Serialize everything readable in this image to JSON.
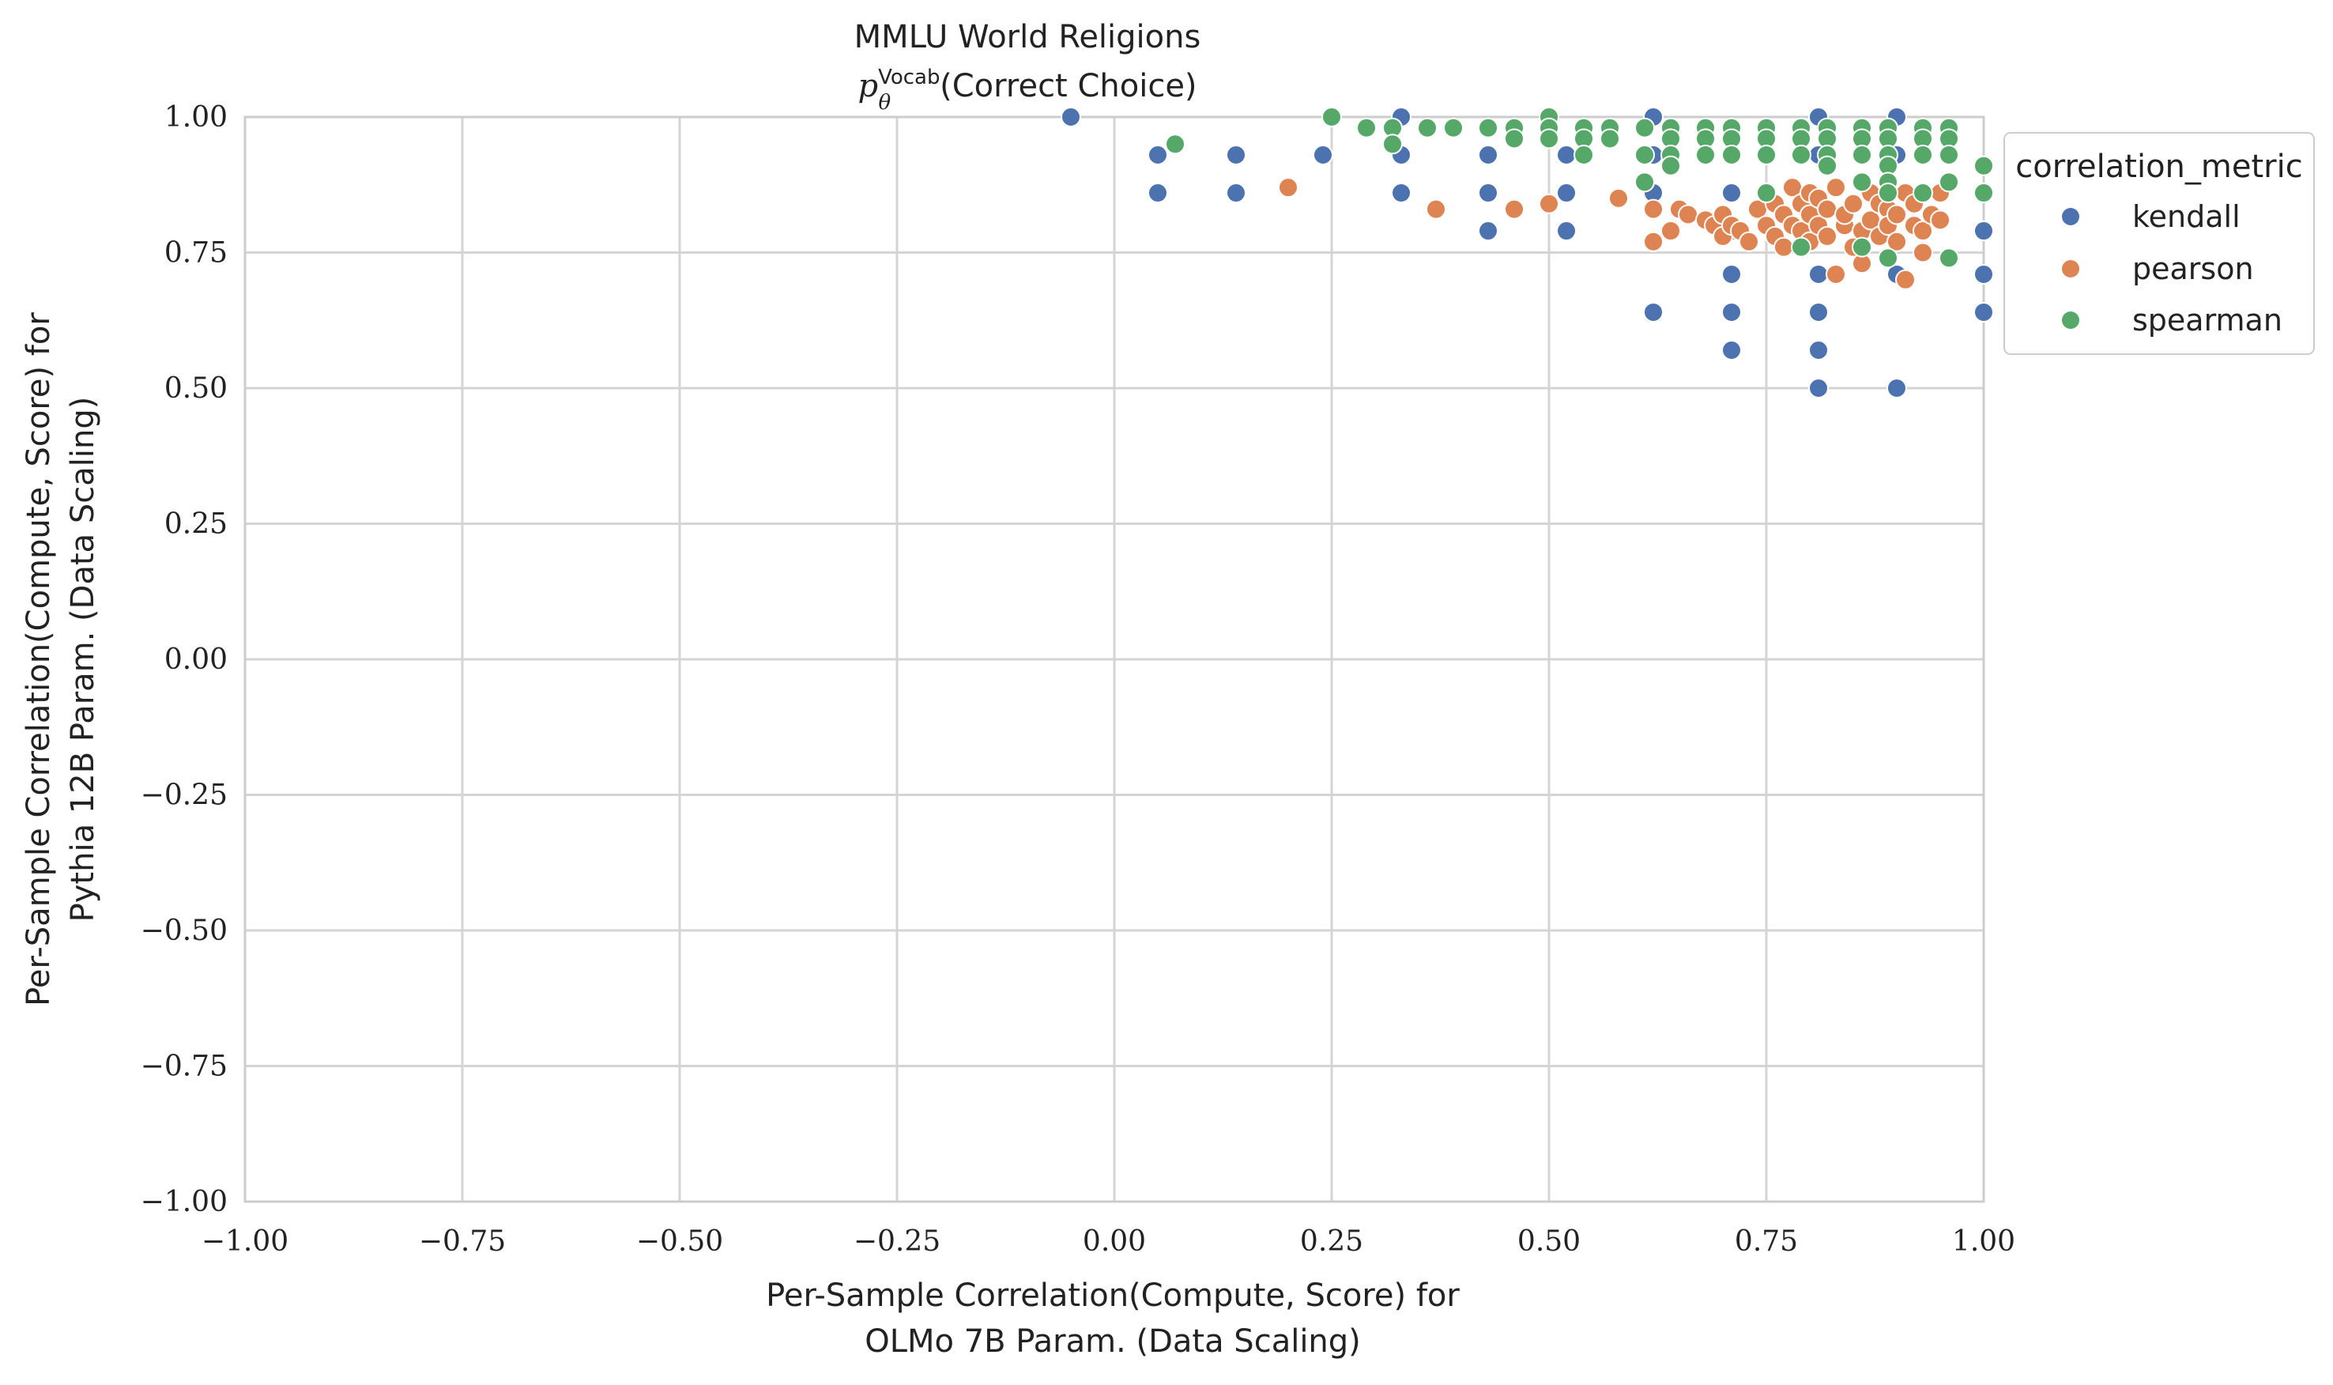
{
  "chart_data": {
    "type": "scatter",
    "title": "MMLU World Religions",
    "subtitle_math": "p",
    "subtitle_sup": "Vocab",
    "subtitle_sub": "θ",
    "subtitle_rest": "(Correct Choice)",
    "xlabel_line1": "Per-Sample Correlation(Compute, Score) for",
    "xlabel_line2": "OLMo 7B Param. (Data Scaling)",
    "ylabel_line1": "Per-Sample Correlation(Compute, Score) for",
    "ylabel_line2": "Pythia 12B Param. (Data Scaling)",
    "xlim": [
      -1.0,
      1.0
    ],
    "ylim": [
      -1.0,
      1.0
    ],
    "xticks": [
      "−1.00",
      "−0.75",
      "−0.50",
      "−0.25",
      "0.00",
      "0.25",
      "0.50",
      "0.75",
      "1.00"
    ],
    "yticks": [
      "1.00",
      "0.75",
      "0.50",
      "0.25",
      "0.00",
      "−0.25",
      "−0.50",
      "−0.75",
      "−1.00"
    ],
    "grid": true,
    "legend": {
      "title": "correlation_metric",
      "placement": "outside-right-top",
      "entries": [
        "kendall",
        "pearson",
        "spearman"
      ]
    },
    "colors": {
      "kendall": "#4c72b0",
      "pearson": "#dd8452",
      "spearman": "#55a868"
    },
    "series": [
      {
        "name": "kendall",
        "points": [
          [
            -0.05,
            1.0
          ],
          [
            0.05,
            0.93
          ],
          [
            0.05,
            0.86
          ],
          [
            0.14,
            0.93
          ],
          [
            0.14,
            0.86
          ],
          [
            0.24,
            0.93
          ],
          [
            0.33,
            1.0
          ],
          [
            0.33,
            0.93
          ],
          [
            0.33,
            0.86
          ],
          [
            0.43,
            0.93
          ],
          [
            0.43,
            0.86
          ],
          [
            0.43,
            0.79
          ],
          [
            0.52,
            0.93
          ],
          [
            0.52,
            0.86
          ],
          [
            0.52,
            0.79
          ],
          [
            0.62,
            1.0
          ],
          [
            0.62,
            0.93
          ],
          [
            0.62,
            0.86
          ],
          [
            0.62,
            0.64
          ],
          [
            0.71,
            0.86
          ],
          [
            0.71,
            0.79
          ],
          [
            0.71,
            0.71
          ],
          [
            0.71,
            0.64
          ],
          [
            0.71,
            0.57
          ],
          [
            0.81,
            1.0
          ],
          [
            0.81,
            0.93
          ],
          [
            0.81,
            0.71
          ],
          [
            0.81,
            0.64
          ],
          [
            0.81,
            0.57
          ],
          [
            0.81,
            0.5
          ],
          [
            0.9,
            1.0
          ],
          [
            0.9,
            0.93
          ],
          [
            0.9,
            0.71
          ],
          [
            0.9,
            0.5
          ],
          [
            0.95,
            0.86
          ],
          [
            1.0,
            0.79
          ],
          [
            1.0,
            0.71
          ],
          [
            1.0,
            0.64
          ]
        ]
      },
      {
        "name": "pearson",
        "points": [
          [
            0.2,
            0.87
          ],
          [
            0.37,
            0.83
          ],
          [
            0.46,
            0.83
          ],
          [
            0.5,
            0.84
          ],
          [
            0.58,
            0.85
          ],
          [
            0.62,
            0.83
          ],
          [
            0.62,
            0.77
          ],
          [
            0.64,
            0.79
          ],
          [
            0.65,
            0.83
          ],
          [
            0.66,
            0.82
          ],
          [
            0.68,
            0.81
          ],
          [
            0.69,
            0.8
          ],
          [
            0.7,
            0.78
          ],
          [
            0.7,
            0.82
          ],
          [
            0.71,
            0.8
          ],
          [
            0.72,
            0.79
          ],
          [
            0.73,
            0.77
          ],
          [
            0.74,
            0.83
          ],
          [
            0.75,
            0.86
          ],
          [
            0.75,
            0.8
          ],
          [
            0.76,
            0.78
          ],
          [
            0.76,
            0.84
          ],
          [
            0.77,
            0.82
          ],
          [
            0.77,
            0.76
          ],
          [
            0.78,
            0.87
          ],
          [
            0.78,
            0.8
          ],
          [
            0.79,
            0.84
          ],
          [
            0.79,
            0.79
          ],
          [
            0.8,
            0.86
          ],
          [
            0.8,
            0.82
          ],
          [
            0.8,
            0.77
          ],
          [
            0.81,
            0.8
          ],
          [
            0.81,
            0.85
          ],
          [
            0.82,
            0.83
          ],
          [
            0.82,
            0.78
          ],
          [
            0.83,
            0.71
          ],
          [
            0.83,
            0.87
          ],
          [
            0.84,
            0.8
          ],
          [
            0.84,
            0.82
          ],
          [
            0.85,
            0.76
          ],
          [
            0.85,
            0.84
          ],
          [
            0.86,
            0.79
          ],
          [
            0.86,
            0.73
          ],
          [
            0.87,
            0.86
          ],
          [
            0.87,
            0.81
          ],
          [
            0.88,
            0.78
          ],
          [
            0.88,
            0.84
          ],
          [
            0.89,
            0.83
          ],
          [
            0.89,
            0.8
          ],
          [
            0.9,
            0.82
          ],
          [
            0.9,
            0.77
          ],
          [
            0.91,
            0.7
          ],
          [
            0.91,
            0.86
          ],
          [
            0.92,
            0.8
          ],
          [
            0.92,
            0.84
          ],
          [
            0.93,
            0.75
          ],
          [
            0.93,
            0.79
          ],
          [
            0.94,
            0.82
          ],
          [
            0.95,
            0.86
          ],
          [
            0.95,
            0.81
          ]
        ]
      },
      {
        "name": "spearman",
        "points": [
          [
            0.07,
            0.95
          ],
          [
            0.25,
            1.0
          ],
          [
            0.29,
            0.98
          ],
          [
            0.32,
            0.98
          ],
          [
            0.32,
            0.95
          ],
          [
            0.36,
            0.98
          ],
          [
            0.39,
            0.98
          ],
          [
            0.43,
            0.98
          ],
          [
            0.46,
            0.98
          ],
          [
            0.46,
            0.96
          ],
          [
            0.5,
            1.0
          ],
          [
            0.5,
            0.98
          ],
          [
            0.5,
            0.96
          ],
          [
            0.54,
            0.98
          ],
          [
            0.54,
            0.96
          ],
          [
            0.54,
            0.93
          ],
          [
            0.57,
            0.98
          ],
          [
            0.57,
            0.96
          ],
          [
            0.61,
            0.98
          ],
          [
            0.61,
            0.93
          ],
          [
            0.61,
            0.88
          ],
          [
            0.64,
            0.98
          ],
          [
            0.64,
            0.96
          ],
          [
            0.64,
            0.93
          ],
          [
            0.64,
            0.91
          ],
          [
            0.68,
            0.98
          ],
          [
            0.68,
            0.96
          ],
          [
            0.68,
            0.93
          ],
          [
            0.71,
            0.98
          ],
          [
            0.71,
            0.96
          ],
          [
            0.71,
            0.93
          ],
          [
            0.75,
            0.98
          ],
          [
            0.75,
            0.96
          ],
          [
            0.75,
            0.93
          ],
          [
            0.75,
            0.86
          ],
          [
            0.79,
            0.98
          ],
          [
            0.79,
            0.96
          ],
          [
            0.79,
            0.93
          ],
          [
            0.79,
            0.76
          ],
          [
            0.82,
            0.98
          ],
          [
            0.82,
            0.96
          ],
          [
            0.82,
            0.93
          ],
          [
            0.82,
            0.91
          ],
          [
            0.86,
            0.98
          ],
          [
            0.86,
            0.96
          ],
          [
            0.86,
            0.93
          ],
          [
            0.86,
            0.88
          ],
          [
            0.86,
            0.76
          ],
          [
            0.89,
            0.98
          ],
          [
            0.89,
            0.96
          ],
          [
            0.89,
            0.93
          ],
          [
            0.89,
            0.91
          ],
          [
            0.89,
            0.88
          ],
          [
            0.89,
            0.86
          ],
          [
            0.89,
            0.74
          ],
          [
            0.93,
            0.98
          ],
          [
            0.93,
            0.96
          ],
          [
            0.93,
            0.93
          ],
          [
            0.93,
            0.86
          ],
          [
            0.96,
            0.98
          ],
          [
            0.96,
            0.96
          ],
          [
            0.96,
            0.93
          ],
          [
            0.96,
            0.88
          ],
          [
            0.96,
            0.74
          ],
          [
            1.0,
            0.91
          ],
          [
            1.0,
            0.86
          ]
        ]
      }
    ]
  }
}
